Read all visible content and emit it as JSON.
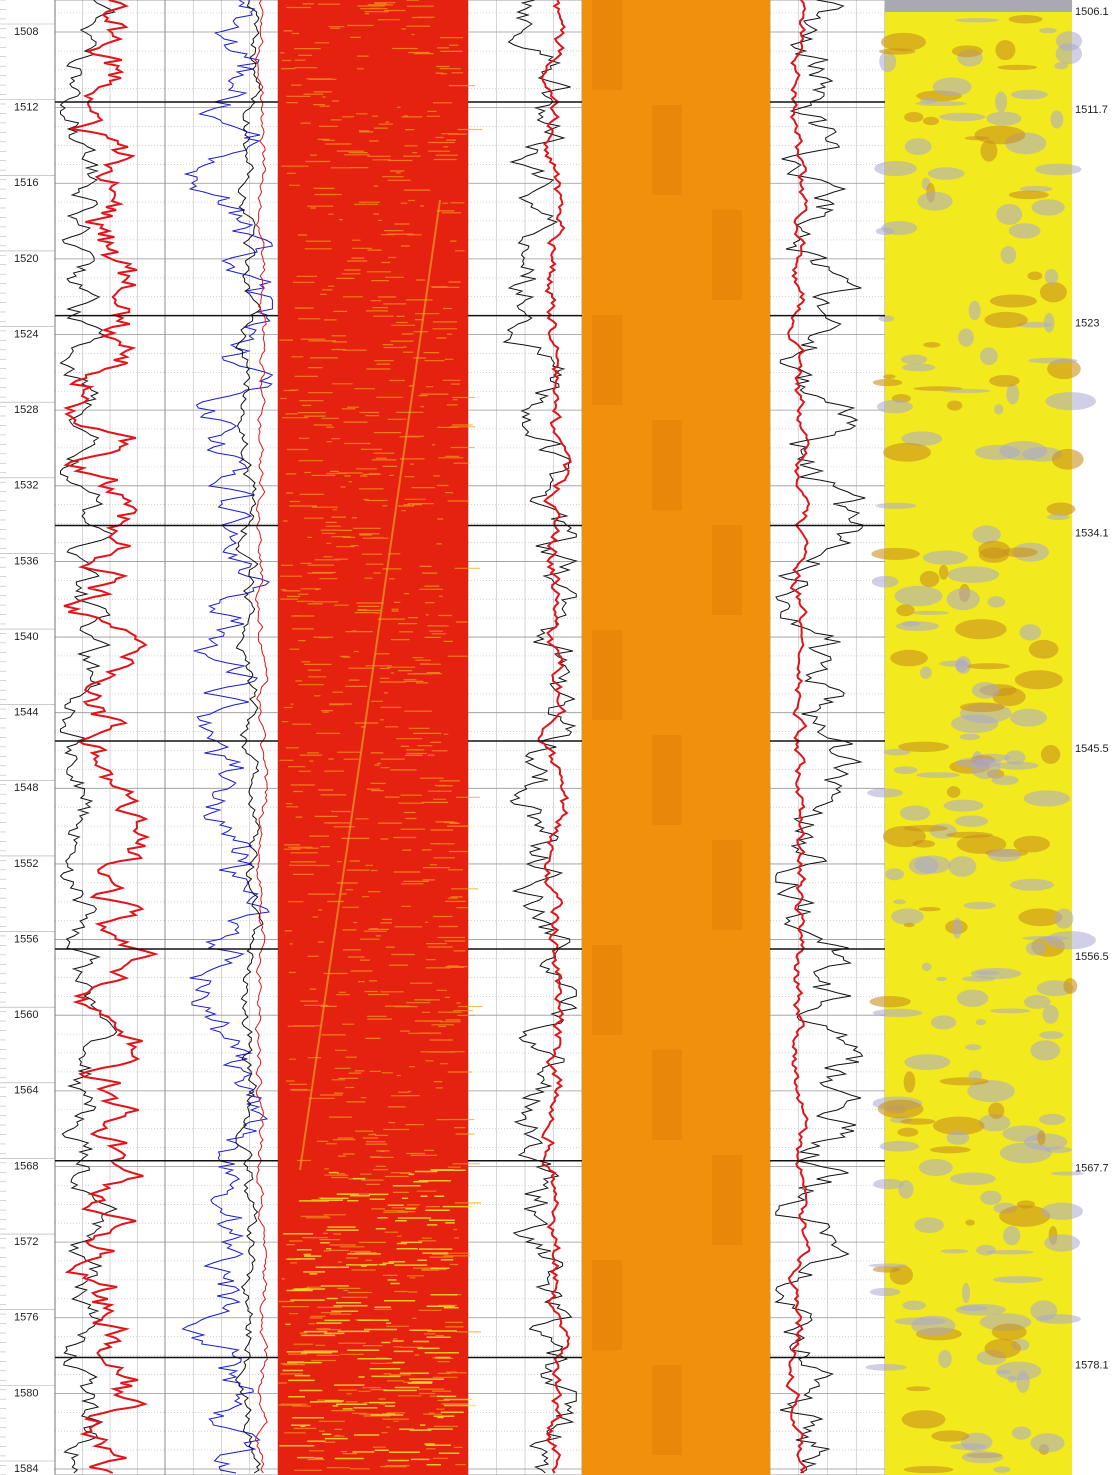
{
  "depth_axis": {
    "ticks": [
      1508,
      1512,
      1516,
      1520,
      1524,
      1528,
      1532,
      1536,
      1540,
      1544,
      1548,
      1552,
      1556,
      1560,
      1564,
      1568,
      1572,
      1576,
      1580,
      1584
    ]
  },
  "markers": [
    1506.1,
    1511.7,
    1523,
    1534.1,
    1545.5,
    1556.5,
    1567.7,
    1578.1
  ]
}
